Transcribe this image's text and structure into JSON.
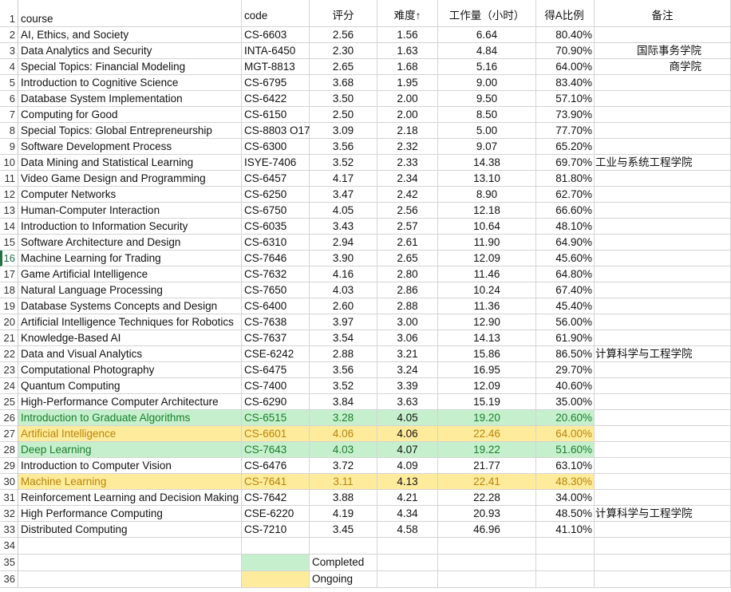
{
  "headers": {
    "course": "course",
    "code": "code",
    "rating": "评分",
    "difficulty": "难度↑",
    "workload": "工作量（小时）",
    "a_ratio": "得A比例",
    "notes": "备注"
  },
  "rows": [
    {
      "n": "2",
      "course": "AI, Ethics, and Society",
      "code": "CS-6603",
      "rating": "2.56",
      "difficulty": "1.56",
      "workload": "6.64",
      "a_ratio": "80.40%",
      "note": ""
    },
    {
      "n": "3",
      "course": "Data Analytics and Security",
      "code": "INTA-6450",
      "rating": "2.30",
      "difficulty": "1.63",
      "workload": "4.84",
      "a_ratio": "70.90%",
      "note": "国际事务学院"
    },
    {
      "n": "4",
      "course": "Special Topics: Financial Modeling",
      "code": "MGT-8813",
      "rating": "2.65",
      "difficulty": "1.68",
      "workload": "5.16",
      "a_ratio": "64.00%",
      "note": "商学院"
    },
    {
      "n": "5",
      "course": "Introduction to Cognitive Science",
      "code": "CS-6795",
      "rating": "3.68",
      "difficulty": "1.95",
      "workload": "9.00",
      "a_ratio": "83.40%",
      "note": ""
    },
    {
      "n": "6",
      "course": "Database System Implementation",
      "code": "CS-6422",
      "rating": "3.50",
      "difficulty": "2.00",
      "workload": "9.50",
      "a_ratio": "57.10%",
      "note": ""
    },
    {
      "n": "7",
      "course": "Computing for Good",
      "code": "CS-6150",
      "rating": "2.50",
      "difficulty": "2.00",
      "workload": "8.50",
      "a_ratio": "73.90%",
      "note": ""
    },
    {
      "n": "8",
      "course": "Special Topics: Global Entrepreneurship",
      "code": "CS-8803 O17",
      "rating": "3.09",
      "difficulty": "2.18",
      "workload": "5.00",
      "a_ratio": "77.70%",
      "note": ""
    },
    {
      "n": "9",
      "course": "Software Development Process",
      "code": "CS-6300",
      "rating": "3.56",
      "difficulty": "2.32",
      "workload": "9.07",
      "a_ratio": "65.20%",
      "note": ""
    },
    {
      "n": "10",
      "course": "Data Mining and Statistical Learning",
      "code": "ISYE-7406",
      "rating": "3.52",
      "difficulty": "2.33",
      "workload": "14.38",
      "a_ratio": "69.70%",
      "note": "工业与系统工程学院",
      "note_left": true
    },
    {
      "n": "11",
      "course": "Video Game Design and Programming",
      "code": "CS-6457",
      "rating": "4.17",
      "difficulty": "2.34",
      "workload": "13.10",
      "a_ratio": "81.80%",
      "note": ""
    },
    {
      "n": "12",
      "course": "Computer Networks",
      "code": "CS-6250",
      "rating": "3.47",
      "difficulty": "2.42",
      "workload": "8.90",
      "a_ratio": "62.70%",
      "note": ""
    },
    {
      "n": "13",
      "course": "Human-Computer Interaction",
      "code": "CS-6750",
      "rating": "4.05",
      "difficulty": "2.56",
      "workload": "12.18",
      "a_ratio": "66.60%",
      "note": ""
    },
    {
      "n": "14",
      "course": "Introduction to Information Security",
      "code": "CS-6035",
      "rating": "3.43",
      "difficulty": "2.57",
      "workload": "10.64",
      "a_ratio": "48.10%",
      "note": ""
    },
    {
      "n": "15",
      "course": "Software Architecture and Design",
      "code": "CS-6310",
      "rating": "2.94",
      "difficulty": "2.61",
      "workload": "11.90",
      "a_ratio": "64.90%",
      "note": ""
    },
    {
      "n": "16",
      "course": "Machine Learning for Trading",
      "code": "CS-7646",
      "rating": "3.90",
      "difficulty": "2.65",
      "workload": "12.09",
      "a_ratio": "45.60%",
      "note": "",
      "selected": true
    },
    {
      "n": "17",
      "course": "Game Artificial Intelligence",
      "code": "CS-7632",
      "rating": "4.16",
      "difficulty": "2.80",
      "workload": "11.46",
      "a_ratio": "64.80%",
      "note": ""
    },
    {
      "n": "18",
      "course": "Natural Language Processing",
      "code": "CS-7650",
      "rating": "4.03",
      "difficulty": "2.86",
      "workload": "10.24",
      "a_ratio": "67.40%",
      "note": ""
    },
    {
      "n": "19",
      "course": "Database Systems Concepts and Design",
      "code": "CS-6400",
      "rating": "2.60",
      "difficulty": "2.88",
      "workload": "11.36",
      "a_ratio": "45.40%",
      "note": ""
    },
    {
      "n": "20",
      "course": "Artificial Intelligence Techniques for Robotics",
      "code": "CS-7638",
      "rating": "3.97",
      "difficulty": "3.00",
      "workload": "12.90",
      "a_ratio": "56.00%",
      "note": ""
    },
    {
      "n": "21",
      "course": "Knowledge-Based AI",
      "code": "CS-7637",
      "rating": "3.54",
      "difficulty": "3.06",
      "workload": "14.13",
      "a_ratio": "61.90%",
      "note": ""
    },
    {
      "n": "22",
      "course": "Data and Visual Analytics",
      "code": "CSE-6242",
      "rating": "2.88",
      "difficulty": "3.21",
      "workload": "15.86",
      "a_ratio": "86.50%",
      "note": "计算科学与工程学院",
      "note_left": true
    },
    {
      "n": "23",
      "course": "Computational Photography",
      "code": "CS-6475",
      "rating": "3.56",
      "difficulty": "3.24",
      "workload": "16.95",
      "a_ratio": "29.70%",
      "note": ""
    },
    {
      "n": "24",
      "course": "Quantum Computing",
      "code": "CS-7400",
      "rating": "3.52",
      "difficulty": "3.39",
      "workload": "12.09",
      "a_ratio": "40.60%",
      "note": ""
    },
    {
      "n": "25",
      "course": "High-Performance Computer Architecture",
      "code": "CS-6290",
      "rating": "3.84",
      "difficulty": "3.63",
      "workload": "15.19",
      "a_ratio": "35.00%",
      "note": ""
    },
    {
      "n": "26",
      "course": "Introduction to Graduate Algorithms",
      "code": "CS-6515",
      "rating": "3.28",
      "difficulty": "4.05",
      "workload": "19.20",
      "a_ratio": "20.60%",
      "note": "",
      "status": "completed"
    },
    {
      "n": "27",
      "course": "Artificial Intelligence",
      "code": "CS-6601",
      "rating": "4.06",
      "difficulty": "4.06",
      "workload": "22.46",
      "a_ratio": "64.00%",
      "note": "",
      "status": "ongoing"
    },
    {
      "n": "28",
      "course": "Deep Learning",
      "code": "CS-7643",
      "rating": "4.03",
      "difficulty": "4.07",
      "workload": "19.22",
      "a_ratio": "51.60%",
      "note": "",
      "status": "completed"
    },
    {
      "n": "29",
      "course": "Introduction to Computer Vision",
      "code": "CS-6476",
      "rating": "3.72",
      "difficulty": "4.09",
      "workload": "21.77",
      "a_ratio": "63.10%",
      "note": ""
    },
    {
      "n": "30",
      "course": "Machine Learning",
      "code": "CS-7641",
      "rating": "3.11",
      "difficulty": "4.13",
      "workload": "22.41",
      "a_ratio": "48.30%",
      "note": "",
      "status": "ongoing"
    },
    {
      "n": "31",
      "course": "Reinforcement Learning and Decision Making",
      "code": "CS-7642",
      "rating": "3.88",
      "difficulty": "4.21",
      "workload": "22.28",
      "a_ratio": "34.00%",
      "note": ""
    },
    {
      "n": "32",
      "course": "High Performance Computing",
      "code": "CSE-6220",
      "rating": "4.19",
      "difficulty": "4.34",
      "workload": "20.93",
      "a_ratio": "48.50%",
      "note": "计算科学与工程学院",
      "note_left": true
    },
    {
      "n": "33",
      "course": "Distributed Computing",
      "code": "CS-7210",
      "rating": "3.45",
      "difficulty": "4.58",
      "workload": "46.96",
      "a_ratio": "41.10%",
      "note": ""
    }
  ],
  "legend": {
    "row34": "34",
    "row35": "35",
    "row36": "36",
    "completed_label": "Completed",
    "ongoing_label": "Ongoing"
  },
  "colors": {
    "completed_fill": "#c6efce",
    "completed_text": "#1a7f2a",
    "ongoing_fill": "#ffeb9c",
    "ongoing_text": "#b8860b",
    "selection_accent": "#217346"
  }
}
